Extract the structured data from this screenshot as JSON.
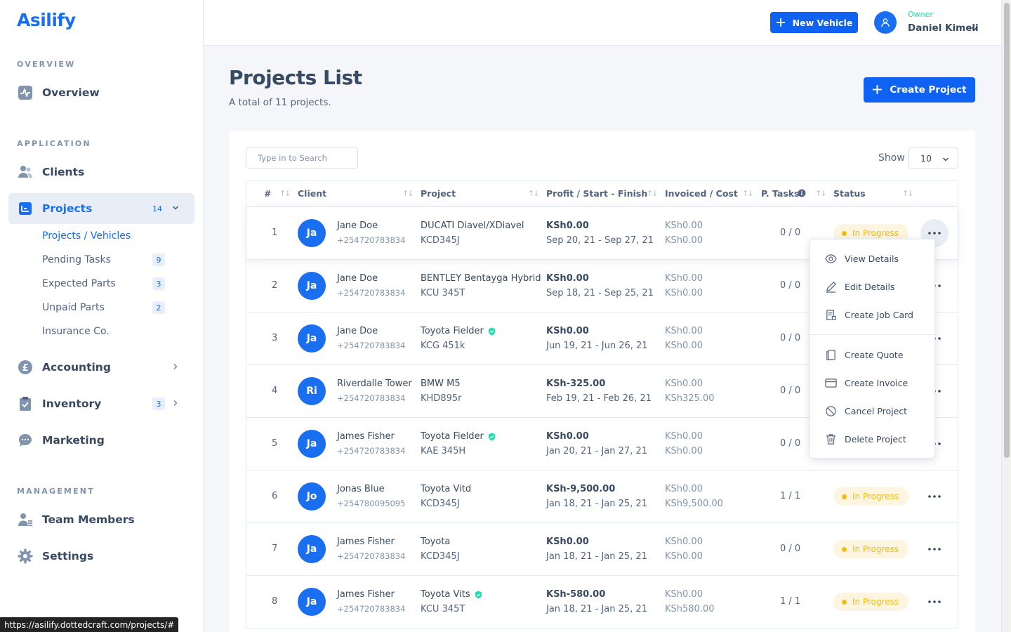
{
  "app": {
    "logo": "Asilify"
  },
  "sidebar": {
    "sections": {
      "overview": "OVERVIEW",
      "application": "APPLICATION",
      "management": "MANAGEMENT"
    },
    "items": [
      {
        "label": "Overview",
        "icon": "pulse-icon"
      },
      {
        "label": "Clients",
        "icon": "users-icon"
      },
      {
        "label": "Projects",
        "icon": "list-icon",
        "badge": "14",
        "expanded": true
      },
      {
        "label": "Accounting",
        "icon": "pound-icon"
      },
      {
        "label": "Inventory",
        "icon": "clipboard-icon",
        "badge": "3"
      },
      {
        "label": "Marketing",
        "icon": "chat-icon"
      },
      {
        "label": "Team Members",
        "icon": "team-icon"
      },
      {
        "label": "Settings",
        "icon": "gear-icon"
      }
    ],
    "sub_items": [
      {
        "label": "Projects / Vehicles",
        "active": true
      },
      {
        "label": "Pending Tasks",
        "badge": "9"
      },
      {
        "label": "Expected Parts",
        "badge": "3"
      },
      {
        "label": "Unpaid Parts",
        "badge": "2"
      },
      {
        "label": "Insurance Co."
      }
    ]
  },
  "header": {
    "new_vehicle_label": "New Vehicle",
    "user": {
      "role": "Owner",
      "name": "Daniel Kimeli"
    }
  },
  "page": {
    "title": "Projects List",
    "subtitle": "A total of 11 projects.",
    "create_label": "Create Project"
  },
  "table": {
    "search_placeholder": "Type in to Search",
    "show_label": "Show",
    "show_value": "10",
    "headers": [
      "#",
      "Client",
      "Project",
      "Profit / Start - Finish",
      "Invoiced / Cost",
      "P. Tasks",
      "Status"
    ],
    "rows": [
      {
        "num": "1",
        "initials": "Ja",
        "client": "Jane Doe",
        "phone": "+254720783834",
        "project": "DUCATI Diavel/XDiavel",
        "verified": false,
        "plate": "KCD345J",
        "profit": "KSh0.00",
        "dates": "Sep 20, 21 - Sep 27, 21",
        "invoiced": "KSh0.00",
        "cost": "KSh0.00",
        "tasks": "0 / 0",
        "status": "In Progress"
      },
      {
        "num": "2",
        "initials": "Ja",
        "client": "Jane Doe",
        "phone": "+254720783834",
        "project": "BENTLEY Bentayga Hybrid",
        "verified": false,
        "plate": "KCU 345T",
        "profit": "KSh0.00",
        "dates": "Sep 18, 21 - Sep 25, 21",
        "invoiced": "KSh0.00",
        "cost": "KSh0.00",
        "tasks": "0 / 0",
        "status": ""
      },
      {
        "num": "3",
        "initials": "Ja",
        "client": "Jane Doe",
        "phone": "+254720783834",
        "project": "Toyota Fielder",
        "verified": true,
        "plate": "KCG 451k",
        "profit": "KSh0.00",
        "dates": "Jun 19, 21 - Jun 26, 21",
        "invoiced": "KSh0.00",
        "cost": "KSh0.00",
        "tasks": "0 / 0",
        "status": ""
      },
      {
        "num": "4",
        "initials": "Ri",
        "client": "Riverdalle Tower",
        "phone": "+254720783834",
        "project": "BMW M5",
        "verified": false,
        "plate": "KHD895r",
        "profit": "KSh-325.00",
        "dates": "Feb 19, 21 - Feb 26, 21",
        "invoiced": "KSh0.00",
        "cost": "KSh325.00",
        "tasks": "0 / 0",
        "status": ""
      },
      {
        "num": "5",
        "initials": "Ja",
        "client": "James Fisher",
        "phone": "+254720783834",
        "project": "Toyota Fielder",
        "verified": true,
        "plate": "KAE 345H",
        "profit": "KSh0.00",
        "dates": "Jan 20, 21 - Jan 27, 21",
        "invoiced": "KSh0.00",
        "cost": "KSh0.00",
        "tasks": "0 / 0",
        "status": ""
      },
      {
        "num": "6",
        "initials": "Jo",
        "client": "Jonas Blue",
        "phone": "+254780095095",
        "project": "Toyota Vitd",
        "verified": false,
        "plate": "KCD345J",
        "profit": "KSh-9,500.00",
        "dates": "Jan 18, 21 - Jan 25, 21",
        "invoiced": "KSh0.00",
        "cost": "KSh9,500.00",
        "tasks": "1 / 1",
        "status": "In Progress"
      },
      {
        "num": "7",
        "initials": "Ja",
        "client": "James Fisher",
        "phone": "+254720783834",
        "project": "Toyota",
        "verified": false,
        "plate": "KCD345J",
        "profit": "KSh0.00",
        "dates": "Jan 18, 21 - Jan 25, 21",
        "invoiced": "KSh0.00",
        "cost": "KSh0.00",
        "tasks": "0 / 0",
        "status": "In Progress"
      },
      {
        "num": "8",
        "initials": "Ja",
        "client": "James Fisher",
        "phone": "+254720783834",
        "project": "Toyota Vits",
        "verified": true,
        "plate": "KCU 345T",
        "profit": "KSh-580.00",
        "dates": "Jan 18, 21 - Jan 25, 21",
        "invoiced": "KSh0.00",
        "cost": "KSh580.00",
        "tasks": "1 / 1",
        "status": "In Progress"
      }
    ]
  },
  "row_menu": {
    "items": [
      {
        "label": "View Details",
        "icon": "eye-icon"
      },
      {
        "label": "Edit Details",
        "icon": "pencil-icon"
      },
      {
        "label": "Create Job Card",
        "icon": "job-card-icon"
      },
      {
        "label": "Create Quote",
        "icon": "quote-icon"
      },
      {
        "label": "Create Invoice",
        "icon": "invoice-icon"
      },
      {
        "label": "Cancel Project",
        "icon": "cancel-icon"
      },
      {
        "label": "Delete Project",
        "icon": "trash-icon"
      }
    ]
  },
  "status_bar": {
    "url": "https://asilify.dottedcraft.com/projects/#"
  },
  "colors": {
    "primary": "#0f62f2",
    "warning": "#f4bd0e",
    "success": "#1ee0ac"
  }
}
